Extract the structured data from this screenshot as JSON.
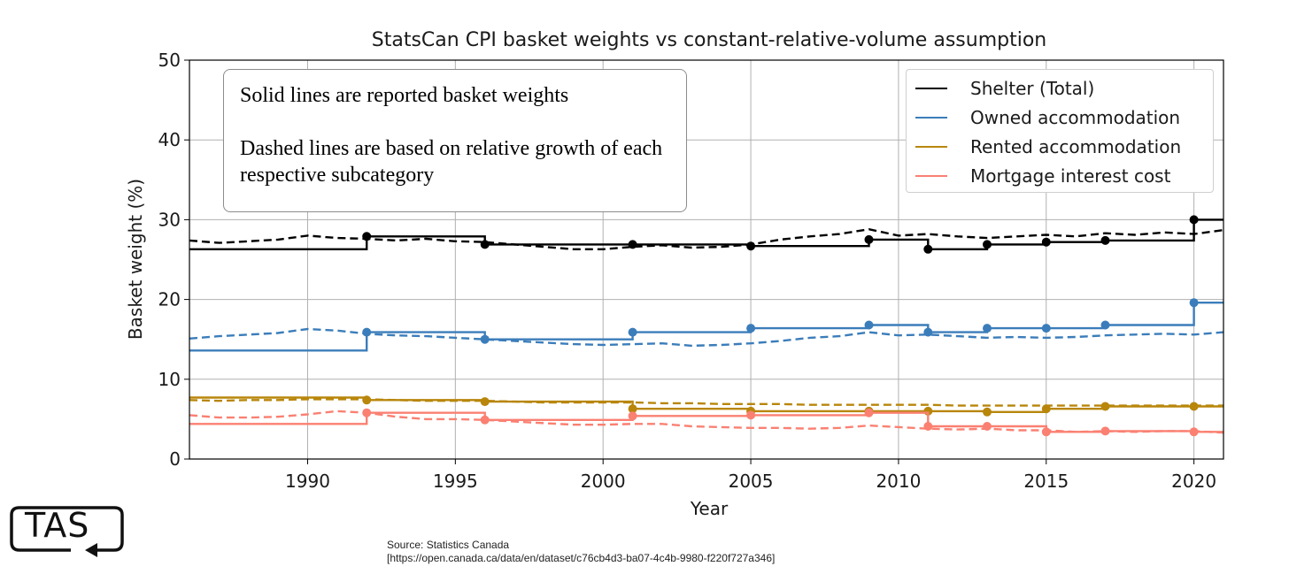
{
  "chart_data": {
    "type": "line",
    "title": "StatsCan CPI basket weights vs constant-relative-volume assumption",
    "xlabel": "Year",
    "ylabel": "Basket weight (%)",
    "xlim": [
      1986,
      2021
    ],
    "ylim": [
      0,
      50
    ],
    "xticks": [
      1990,
      1995,
      2000,
      2005,
      2010,
      2015,
      2020
    ],
    "yticks": [
      0,
      10,
      20,
      30,
      40,
      50
    ],
    "grid": true,
    "legend_position": "top-right",
    "legend": [
      "Shelter (Total)",
      "Owned accommodation",
      "Rented accommodation",
      "Mortgage interest cost"
    ],
    "series": [
      {
        "name": "Shelter (Total)",
        "color": "#000000",
        "basket_years": [
          1986,
          1992,
          1996,
          2001,
          2005,
          2009,
          2011,
          2013,
          2015,
          2017,
          2020
        ],
        "basket_weights": [
          26.3,
          27.9,
          26.9,
          26.9,
          26.7,
          27.5,
          26.3,
          26.9,
          27.2,
          27.4,
          30.0
        ],
        "constant_volume": {
          "x": [
            1986,
            1987,
            1988,
            1989,
            1990,
            1991,
            1992,
            1993,
            1994,
            1995,
            1996,
            1997,
            1998,
            1999,
            2000,
            2001,
            2002,
            2003,
            2004,
            2005,
            2006,
            2007,
            2008,
            2009,
            2010,
            2011,
            2012,
            2013,
            2014,
            2015,
            2016,
            2017,
            2018,
            2019,
            2020,
            2021
          ],
          "y": [
            27.4,
            27.1,
            27.3,
            27.5,
            28.0,
            27.7,
            27.6,
            27.4,
            27.6,
            27.3,
            27.2,
            26.9,
            26.6,
            26.3,
            26.3,
            26.6,
            26.8,
            26.5,
            26.6,
            26.9,
            27.5,
            27.9,
            28.2,
            28.8,
            28.0,
            28.2,
            27.9,
            27.7,
            27.9,
            28.1,
            27.9,
            28.3,
            28.1,
            28.4,
            28.2,
            28.7
          ]
        }
      },
      {
        "name": "Owned accommodation",
        "color": "#3b7dba",
        "basket_years": [
          1986,
          1992,
          1996,
          2001,
          2005,
          2009,
          2011,
          2013,
          2015,
          2017,
          2020
        ],
        "basket_weights": [
          13.6,
          15.9,
          15.0,
          15.9,
          16.4,
          16.8,
          15.9,
          16.4,
          16.4,
          16.8,
          19.6
        ],
        "constant_volume": {
          "x": [
            1986,
            1987,
            1988,
            1989,
            1990,
            1991,
            1992,
            1993,
            1994,
            1995,
            1996,
            1997,
            1998,
            1999,
            2000,
            2001,
            2002,
            2003,
            2004,
            2005,
            2006,
            2007,
            2008,
            2009,
            2010,
            2011,
            2012,
            2013,
            2014,
            2015,
            2016,
            2017,
            2018,
            2019,
            2020,
            2021
          ],
          "y": [
            15.1,
            15.4,
            15.6,
            15.8,
            16.3,
            16.1,
            15.7,
            15.5,
            15.4,
            15.2,
            15.0,
            14.8,
            14.6,
            14.4,
            14.3,
            14.4,
            14.5,
            14.2,
            14.3,
            14.5,
            14.8,
            15.2,
            15.4,
            15.9,
            15.5,
            15.6,
            15.4,
            15.2,
            15.3,
            15.2,
            15.3,
            15.5,
            15.6,
            15.7,
            15.6,
            15.9
          ]
        }
      },
      {
        "name": "Rented accommodation",
        "color": "#b8860b",
        "basket_years": [
          1986,
          1992,
          1996,
          2001,
          2005,
          2009,
          2011,
          2013,
          2015,
          2017,
          2020
        ],
        "basket_weights": [
          7.7,
          7.4,
          7.2,
          6.3,
          6.0,
          6.0,
          6.0,
          5.9,
          6.3,
          6.6,
          6.6
        ],
        "constant_volume": {
          "x": [
            1986,
            1987,
            1988,
            1989,
            1990,
            1991,
            1992,
            1993,
            1994,
            1995,
            1996,
            1997,
            1998,
            1999,
            2000,
            2001,
            2002,
            2003,
            2004,
            2005,
            2006,
            2007,
            2008,
            2009,
            2010,
            2011,
            2012,
            2013,
            2014,
            2015,
            2016,
            2017,
            2018,
            2019,
            2020,
            2021
          ],
          "y": [
            7.4,
            7.3,
            7.4,
            7.4,
            7.5,
            7.5,
            7.5,
            7.4,
            7.3,
            7.3,
            7.3,
            7.2,
            7.1,
            7.1,
            7.1,
            7.1,
            7.0,
            7.0,
            6.9,
            6.9,
            6.9,
            6.8,
            6.8,
            6.8,
            6.8,
            6.8,
            6.7,
            6.7,
            6.7,
            6.7,
            6.7,
            6.7,
            6.7,
            6.7,
            6.7,
            6.7
          ]
        }
      },
      {
        "name": "Mortgage interest cost",
        "color": "#fa8072",
        "basket_years": [
          1986,
          1992,
          1996,
          2001,
          2005,
          2009,
          2011,
          2013,
          2015,
          2017,
          2020
        ],
        "basket_weights": [
          4.4,
          5.8,
          4.9,
          5.4,
          5.5,
          5.8,
          4.1,
          4.1,
          3.4,
          3.5,
          3.4
        ],
        "constant_volume": {
          "x": [
            1986,
            1987,
            1988,
            1989,
            1990,
            1991,
            1992,
            1993,
            1994,
            1995,
            1996,
            1997,
            1998,
            1999,
            2000,
            2001,
            2002,
            2003,
            2004,
            2005,
            2006,
            2007,
            2008,
            2009,
            2010,
            2011,
            2012,
            2013,
            2014,
            2015,
            2016,
            2017,
            2018,
            2019,
            2020,
            2021
          ],
          "y": [
            5.5,
            5.2,
            5.2,
            5.3,
            5.6,
            6.0,
            5.8,
            5.3,
            5.0,
            5.0,
            4.9,
            4.7,
            4.5,
            4.3,
            4.3,
            4.4,
            4.4,
            4.1,
            4.0,
            3.9,
            3.9,
            3.8,
            3.9,
            4.2,
            4.0,
            3.8,
            3.7,
            3.8,
            3.6,
            3.6,
            3.4,
            3.5,
            3.4,
            3.5,
            3.5,
            3.3
          ]
        }
      }
    ]
  },
  "annotation": {
    "line1": "Solid lines are reported basket weights",
    "line2": "Dashed lines are based on relative growth of each respective subcategory"
  },
  "logo": {
    "text": "TAS"
  },
  "source": {
    "line1": "Source: Statistics Canada",
    "line2": "[https://open.canada.ca/data/en/dataset/c76cb4d3-ba07-4c4b-9980-f220f727a346]"
  }
}
